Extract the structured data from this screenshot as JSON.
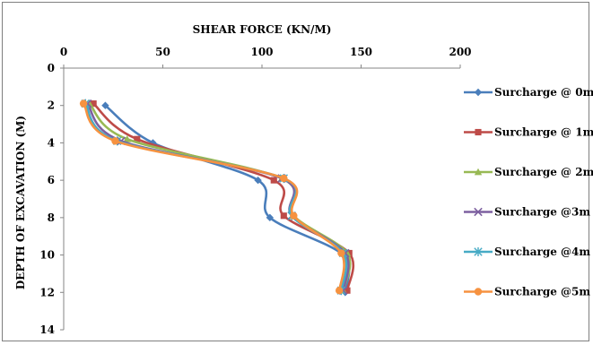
{
  "chart_data": {
    "type": "line",
    "title": "SHEAR FORCE (KN/M)",
    "xlabel": "SHEAR FORCE (KN/M)",
    "ylabel": "DEPTH OF EXCAVATION (M)",
    "xlim": [
      0,
      200
    ],
    "ylim": [
      0,
      14
    ],
    "y_inverted": true,
    "x_axis_position": "top",
    "x_ticks": [
      "0",
      "50",
      "100",
      "150",
      "200"
    ],
    "y_ticks": [
      "0",
      "2",
      "4",
      "6",
      "8",
      "10",
      "12",
      "14"
    ],
    "grid": false,
    "legend_position": "right",
    "series": [
      {
        "name": "Surcharge @ 0m",
        "color": "#4a7ebb",
        "marker": "diamond",
        "points": [
          [
            21,
            2
          ],
          [
            45,
            4
          ],
          [
            98,
            6
          ],
          [
            104,
            8
          ],
          [
            141,
            10
          ],
          [
            142,
            12
          ]
        ]
      },
      {
        "name": "Surcharge @ 1m",
        "color": "#be4b48",
        "marker": "square",
        "points": [
          [
            15,
            1.9
          ],
          [
            37,
            3.8
          ],
          [
            106,
            6
          ],
          [
            111,
            7.9
          ],
          [
            144,
            9.9
          ],
          [
            143,
            11.9
          ]
        ]
      },
      {
        "name": "Surcharge @ 2m",
        "color": "#98b954",
        "marker": "triangle",
        "points": [
          [
            13,
            1.9
          ],
          [
            32,
            3.8
          ],
          [
            110,
            5.9
          ],
          [
            116,
            7.9
          ],
          [
            143,
            9.9
          ],
          [
            141,
            11.9
          ]
        ]
      },
      {
        "name": "Surcharge @3m",
        "color": "#7d60a0",
        "marker": "x",
        "points": [
          [
            12,
            1.9
          ],
          [
            29,
            3.9
          ],
          [
            110,
            5.9
          ],
          [
            115,
            7.9
          ],
          [
            142,
            9.9
          ],
          [
            141,
            11.9
          ]
        ]
      },
      {
        "name": "Surcharge @4m",
        "color": "#46aac5",
        "marker": "asterisk",
        "points": [
          [
            11,
            1.9
          ],
          [
            27,
            3.9
          ],
          [
            111,
            5.9
          ],
          [
            115,
            7.9
          ],
          [
            141,
            9.9
          ],
          [
            140,
            11.9
          ]
        ]
      },
      {
        "name": "Surcharge @5m",
        "color": "#f69240",
        "marker": "circle",
        "points": [
          [
            10,
            1.9
          ],
          [
            26,
            3.9
          ],
          [
            111,
            5.9
          ],
          [
            116,
            7.9
          ],
          [
            140,
            9.9
          ],
          [
            139,
            11.9
          ]
        ]
      }
    ]
  }
}
